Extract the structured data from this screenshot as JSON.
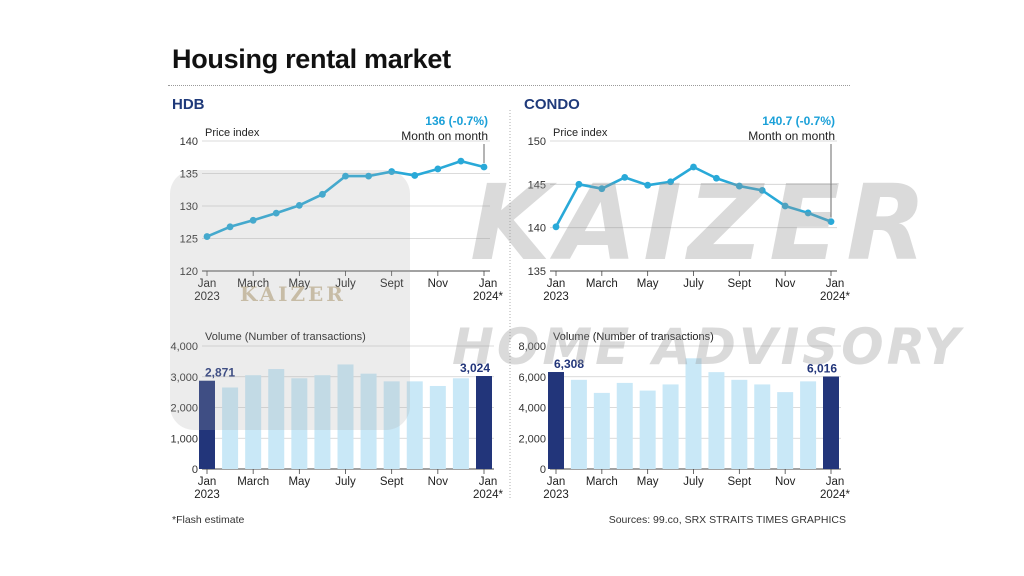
{
  "title": "Housing rental market",
  "hdb_label": "HDB",
  "condo_label": "CONDO",
  "footnote": "*Flash estimate",
  "sources": "Sources: 99.co, SRX   STRAITS TIMES GRAPHICS",
  "watermark": {
    "line1": "KAIZER",
    "line2": "HOME ADVISORY",
    "logo_text": "KAIZER"
  },
  "colors": {
    "line": "#29a9d8",
    "bar_highlight": "#22357a",
    "bar_light": "#c9e8f7",
    "label_blue": "#1f3a7a",
    "annotation": "#1aa0d8"
  },
  "x_tick_labels": [
    "Jan\n2023",
    "March",
    "May",
    "July",
    "Sept",
    "Nov",
    "Jan\n2024*"
  ],
  "chart_data": [
    {
      "id": "hdb_price",
      "type": "line",
      "ylabel": "Price index",
      "ylim": [
        120,
        140
      ],
      "yticks": [
        120,
        125,
        130,
        135,
        140
      ],
      "x": [
        "Jan 2023",
        "Feb",
        "Mar",
        "Apr",
        "May",
        "Jun",
        "Jul",
        "Aug",
        "Sep",
        "Oct",
        "Nov",
        "Dec",
        "Jan 2024*"
      ],
      "values": [
        125.3,
        126.8,
        127.8,
        128.9,
        130.1,
        131.8,
        134.6,
        134.6,
        135.3,
        134.7,
        135.7,
        136.9,
        136.0
      ],
      "annotation": {
        "value": "136 (-0.7%)",
        "text": "Month on month"
      },
      "grid": true
    },
    {
      "id": "condo_price",
      "type": "line",
      "ylabel": "Price index",
      "ylim": [
        135,
        150
      ],
      "yticks": [
        135,
        140,
        145,
        150
      ],
      "x": [
        "Jan 2023",
        "Feb",
        "Mar",
        "Apr",
        "May",
        "Jun",
        "Jul",
        "Aug",
        "Sep",
        "Oct",
        "Nov",
        "Dec",
        "Jan 2024*"
      ],
      "values": [
        140.1,
        145.0,
        144.5,
        145.8,
        144.9,
        145.3,
        147.0,
        145.7,
        144.8,
        144.3,
        142.5,
        141.7,
        140.7
      ],
      "annotation": {
        "value": "140.7 (-0.7%)",
        "text": "Month on month"
      },
      "grid": true
    },
    {
      "id": "hdb_volume",
      "type": "bar",
      "ylabel": "Volume (Number of transactions)",
      "ylim": [
        0,
        4000
      ],
      "yticks": [
        0,
        1000,
        2000,
        3000,
        4000
      ],
      "ytick_labels": [
        "0",
        "1,000",
        "2,000",
        "3,000",
        "4,000"
      ],
      "x": [
        "Jan 2023",
        "Feb",
        "Mar",
        "Apr",
        "May",
        "Jun",
        "Jul",
        "Aug",
        "Sep",
        "Oct",
        "Nov",
        "Dec",
        "Jan 2024*"
      ],
      "values": [
        2871,
        2650,
        3050,
        3250,
        2950,
        3050,
        3400,
        3100,
        2850,
        2850,
        2700,
        2950,
        3024
      ],
      "highlight": [
        0,
        12
      ],
      "value_labels": {
        "first": "2,871",
        "last": "3,024"
      }
    },
    {
      "id": "condo_volume",
      "type": "bar",
      "ylabel": "Volume (Number of transactions)",
      "ylim": [
        0,
        8000
      ],
      "yticks": [
        0,
        2000,
        4000,
        6000,
        8000
      ],
      "ytick_labels": [
        "0",
        "2,000",
        "4,000",
        "6,000",
        "8,000"
      ],
      "x": [
        "Jan 2023",
        "Feb",
        "Mar",
        "Apr",
        "May",
        "Jun",
        "Jul",
        "Aug",
        "Sep",
        "Oct",
        "Nov",
        "Dec",
        "Jan 2024*"
      ],
      "values": [
        6308,
        5800,
        4950,
        5600,
        5100,
        5500,
        7200,
        6300,
        5800,
        5500,
        5000,
        5700,
        6016
      ],
      "highlight": [
        0,
        12
      ],
      "value_labels": {
        "first": "6,308",
        "last": "6,016"
      }
    }
  ]
}
